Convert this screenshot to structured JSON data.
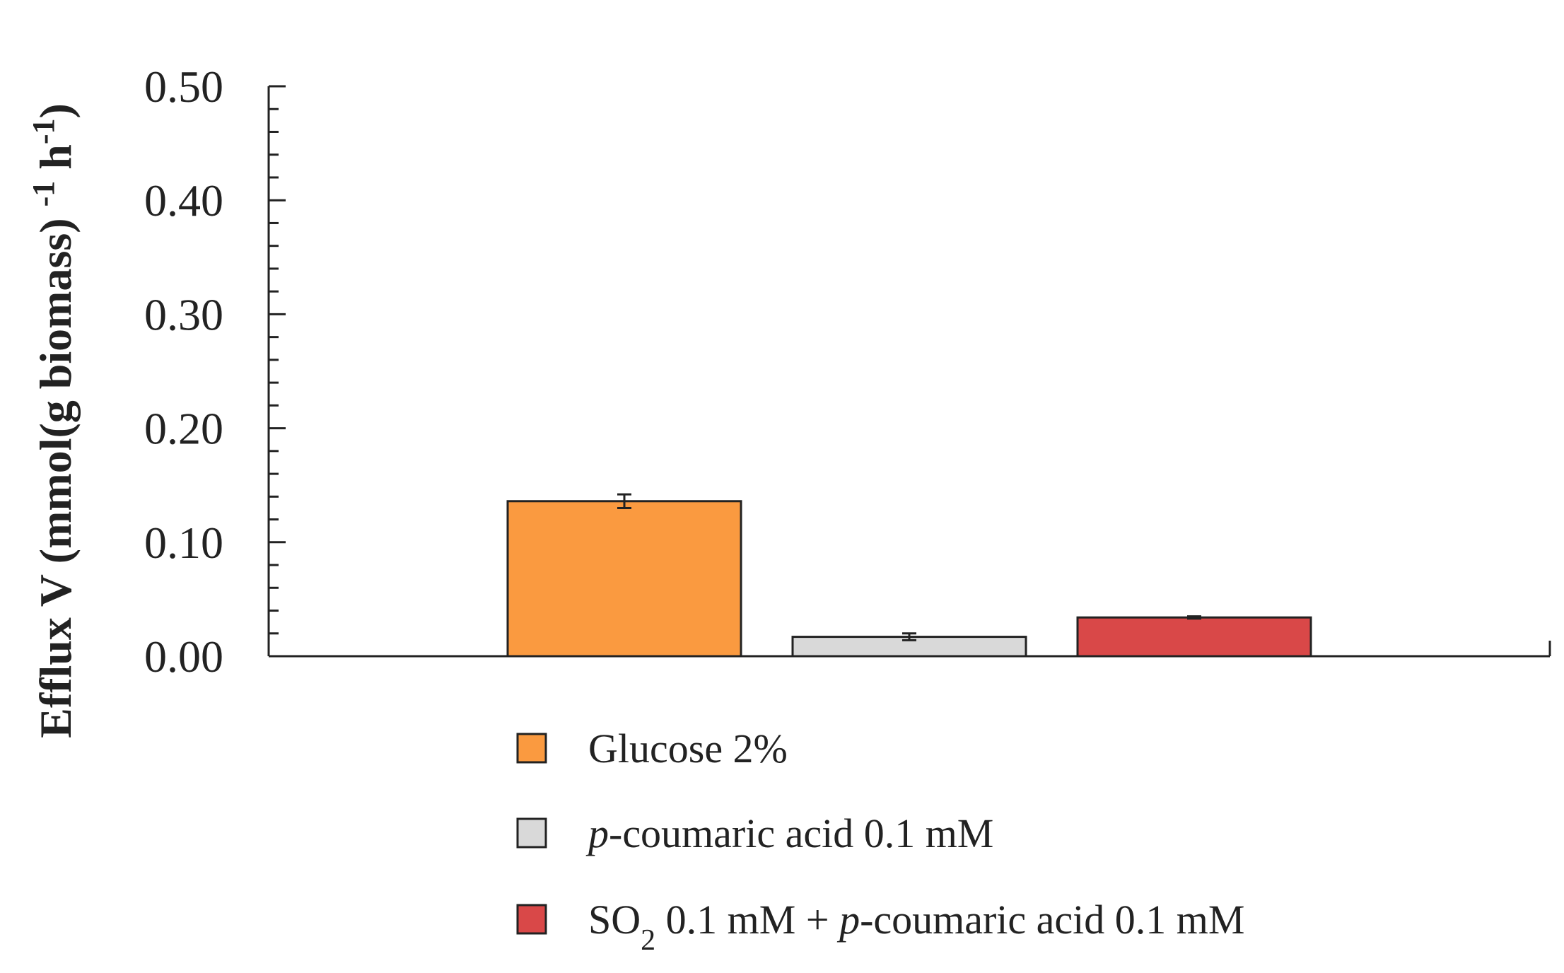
{
  "chart_data": {
    "type": "bar",
    "categories": [
      "Glucose 2%",
      "p-coumaric acid 0.1 mM",
      "SO2 0.1 mM + p-coumaric acid 0.1 mM"
    ],
    "series": [
      {
        "values": [
          0.136,
          0.017,
          0.034
        ],
        "errors": [
          0.006,
          0.003,
          0.001
        ]
      }
    ],
    "colors": [
      "#fa9a40",
      "#d9d9d9",
      "#d94848"
    ],
    "title": "",
    "xlabel": "",
    "ylabel": "Efflux V (mmol(g biomass) -1 h-1)",
    "ylim": [
      0,
      0.5
    ],
    "yticks": [
      "0.00",
      "0.10",
      "0.20",
      "0.30",
      "0.40",
      "0.50"
    ],
    "grid": false,
    "legend": {
      "placement": "bottom",
      "entries": [
        {
          "parts": [
            {
              "text": "Glucose 2%"
            }
          ]
        },
        {
          "parts": [
            {
              "text": "p",
              "italic": true
            },
            {
              "text": "-coumaric acid 0.1 mM"
            }
          ]
        },
        {
          "parts": [
            {
              "text": "SO"
            },
            {
              "text": "2",
              "sub": true
            },
            {
              "text": " 0.1 mM + "
            },
            {
              "text": "p",
              "italic": true
            },
            {
              "text": "-coumaric acid 0.1 mM"
            }
          ]
        }
      ]
    }
  }
}
